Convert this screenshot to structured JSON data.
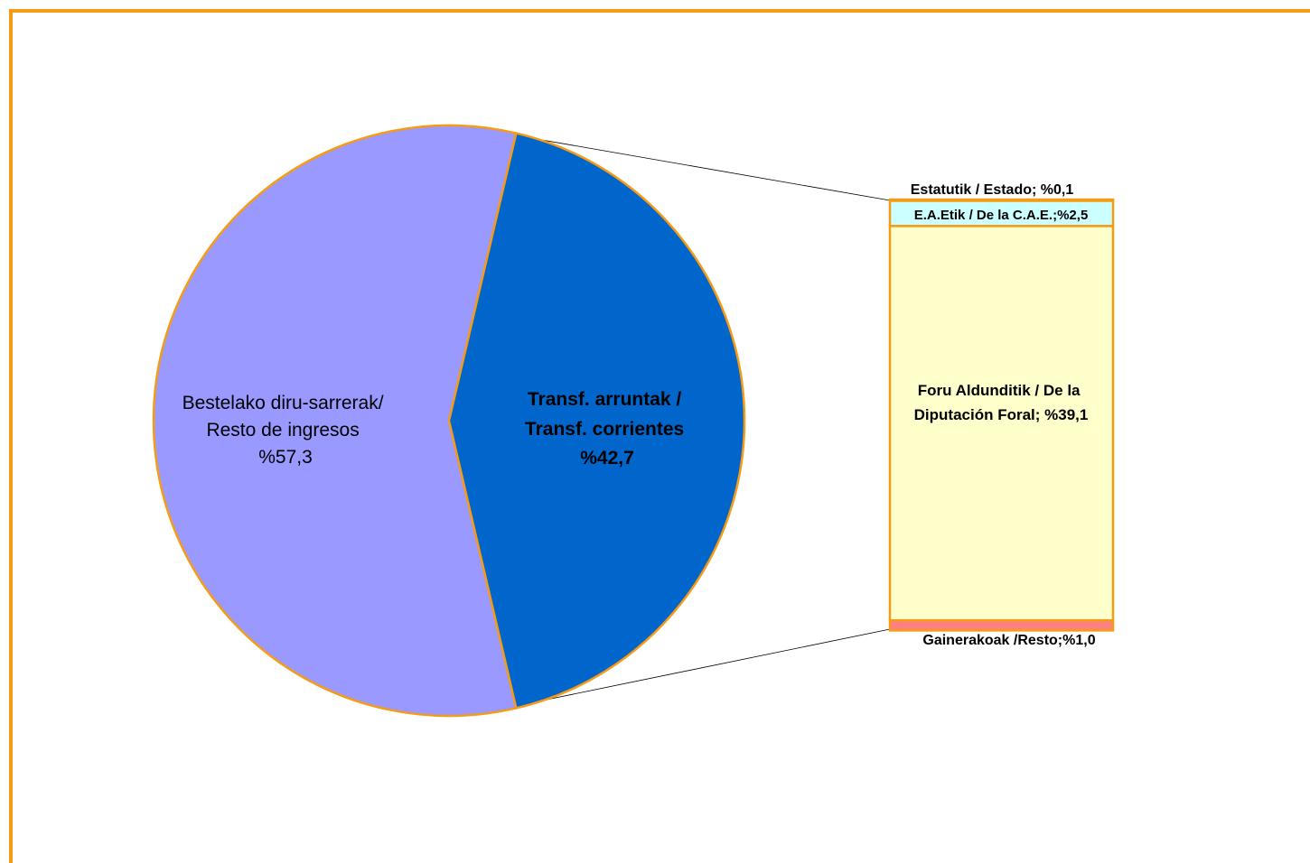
{
  "chart_data": {
    "type": "pie",
    "variant": "bar-of-pie",
    "title": "",
    "colors": {
      "frame_border": "#F59B16",
      "slice_border": "#F59B16",
      "leader_line": "#000000",
      "text": "#000000"
    },
    "pie": {
      "slices": [
        {
          "name": "Bestelako diru-sarrerak/ Resto de ingresos",
          "value": 57.3,
          "label_lines": [
            "Bestelako diru-sarrerak/",
            "Resto de ingresos",
            "%57,3"
          ],
          "color": "#9999FF",
          "bold": false
        },
        {
          "name": "Transf. arruntak / Transf. corrientes",
          "value": 42.7,
          "label_lines": [
            "Transf. arruntak /",
            "Transf. corrientes",
            "%42,7"
          ],
          "color": "#0066CC",
          "bold": true
        }
      ]
    },
    "bar": {
      "segments": [
        {
          "name": "Estatutik /  Estado",
          "value": 0.1,
          "label": "Estatutik /  Estado; %0,1",
          "color": "#99CCFF"
        },
        {
          "name": "E.A.Etik / De la C.A.E.",
          "value": 2.5,
          "label": "E.A.Etik / De la C.A.E.;%2,5",
          "color": "#CCFFFF"
        },
        {
          "name": "Foru Aldunditik / De la Diputación Foral",
          "value": 39.1,
          "label_lines": [
            "Foru Aldunditik / De la",
            "Diputación Foral; %39,1"
          ],
          "color": "#FFFFCC"
        },
        {
          "name": "Gainerakoak /Resto",
          "value": 1.0,
          "label": "Gainerakoak /Resto;%1,0",
          "color": "#FF8080"
        }
      ]
    }
  }
}
